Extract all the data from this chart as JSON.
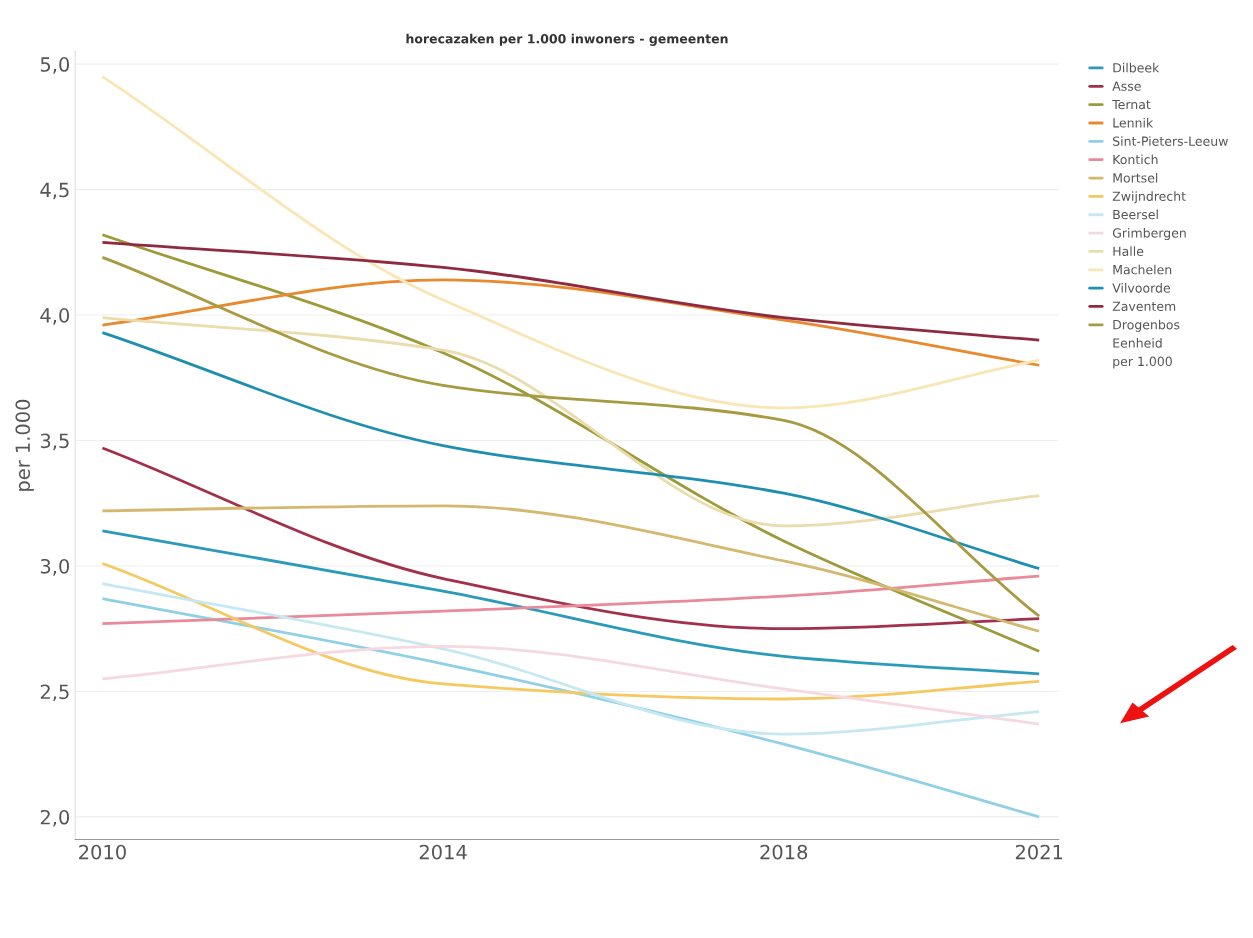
{
  "chart_data": {
    "type": "line",
    "title": "horecazaken per 1.000 inwoners - gemeenten",
    "ylabel": "per 1.000",
    "x": [
      2010,
      2014,
      2018,
      2021
    ],
    "xlim": [
      2009.68,
      2021.23
    ],
    "xticks": [
      2010,
      2014,
      2018,
      2021
    ],
    "ylim": [
      1.91,
      5.05
    ],
    "yticks": [
      {
        "value": 2.0,
        "label": "2,0"
      },
      {
        "value": 2.5,
        "label": "2,5"
      },
      {
        "value": 3.0,
        "label": "3,0"
      },
      {
        "value": 3.5,
        "label": "3,5"
      },
      {
        "value": 4.0,
        "label": "4,0"
      },
      {
        "value": 4.5,
        "label": "4,5"
      },
      {
        "value": 5.0,
        "label": "5,0"
      }
    ],
    "grid": "y",
    "legend": "right",
    "marker": "none",
    "line_style": "solid",
    "annotations": [
      "Eenheid",
      "per 1.000"
    ],
    "series": [
      {
        "name": "Dilbeek",
        "color": "#2a9bb8",
        "values": [
          3.14,
          2.9,
          2.64,
          2.57
        ]
      },
      {
        "name": "Asse",
        "color": "#a3304a",
        "values": [
          3.47,
          2.95,
          2.75,
          2.79
        ]
      },
      {
        "name": "Ternat",
        "color": "#9e9a3a",
        "values": [
          4.32,
          3.85,
          3.1,
          2.66
        ]
      },
      {
        "name": "Lennik",
        "color": "#e8892d",
        "values": [
          3.96,
          4.14,
          3.98,
          3.8
        ]
      },
      {
        "name": "Sint-Pieters-Leeuw",
        "color": "#8fd0e6",
        "values": [
          2.87,
          2.61,
          2.29,
          2.0
        ]
      },
      {
        "name": "Kontich",
        "color": "#e88a9a",
        "values": [
          2.77,
          2.82,
          2.88,
          2.96
        ]
      },
      {
        "name": "Mortsel",
        "color": "#d4b870",
        "values": [
          3.22,
          3.24,
          3.02,
          2.74
        ]
      },
      {
        "name": "Zwijndrecht",
        "color": "#f5c860",
        "values": [
          3.01,
          2.53,
          2.47,
          2.54
        ]
      },
      {
        "name": "Beersel",
        "color": "#c5e8f2",
        "values": [
          2.93,
          2.67,
          2.33,
          2.42
        ]
      },
      {
        "name": "Grimbergen",
        "color": "#f8d8e0",
        "values": [
          2.55,
          2.68,
          2.51,
          2.37
        ]
      },
      {
        "name": "Halle",
        "color": "#ebdcae",
        "values": [
          3.99,
          3.86,
          3.16,
          3.28
        ]
      },
      {
        "name": "Machelen",
        "color": "#fae6b4",
        "values": [
          4.95,
          4.06,
          3.63,
          3.82
        ]
      },
      {
        "name": "Vilvoorde",
        "color": "#1f8fb0",
        "values": [
          3.93,
          3.48,
          3.29,
          2.99
        ]
      },
      {
        "name": "Zaventem",
        "color": "#8f2a40",
        "values": [
          4.29,
          4.19,
          3.99,
          3.9
        ]
      },
      {
        "name": "Drogenbos",
        "color": "#a89a40",
        "values": [
          4.23,
          3.72,
          3.58,
          2.8
        ]
      }
    ]
  }
}
